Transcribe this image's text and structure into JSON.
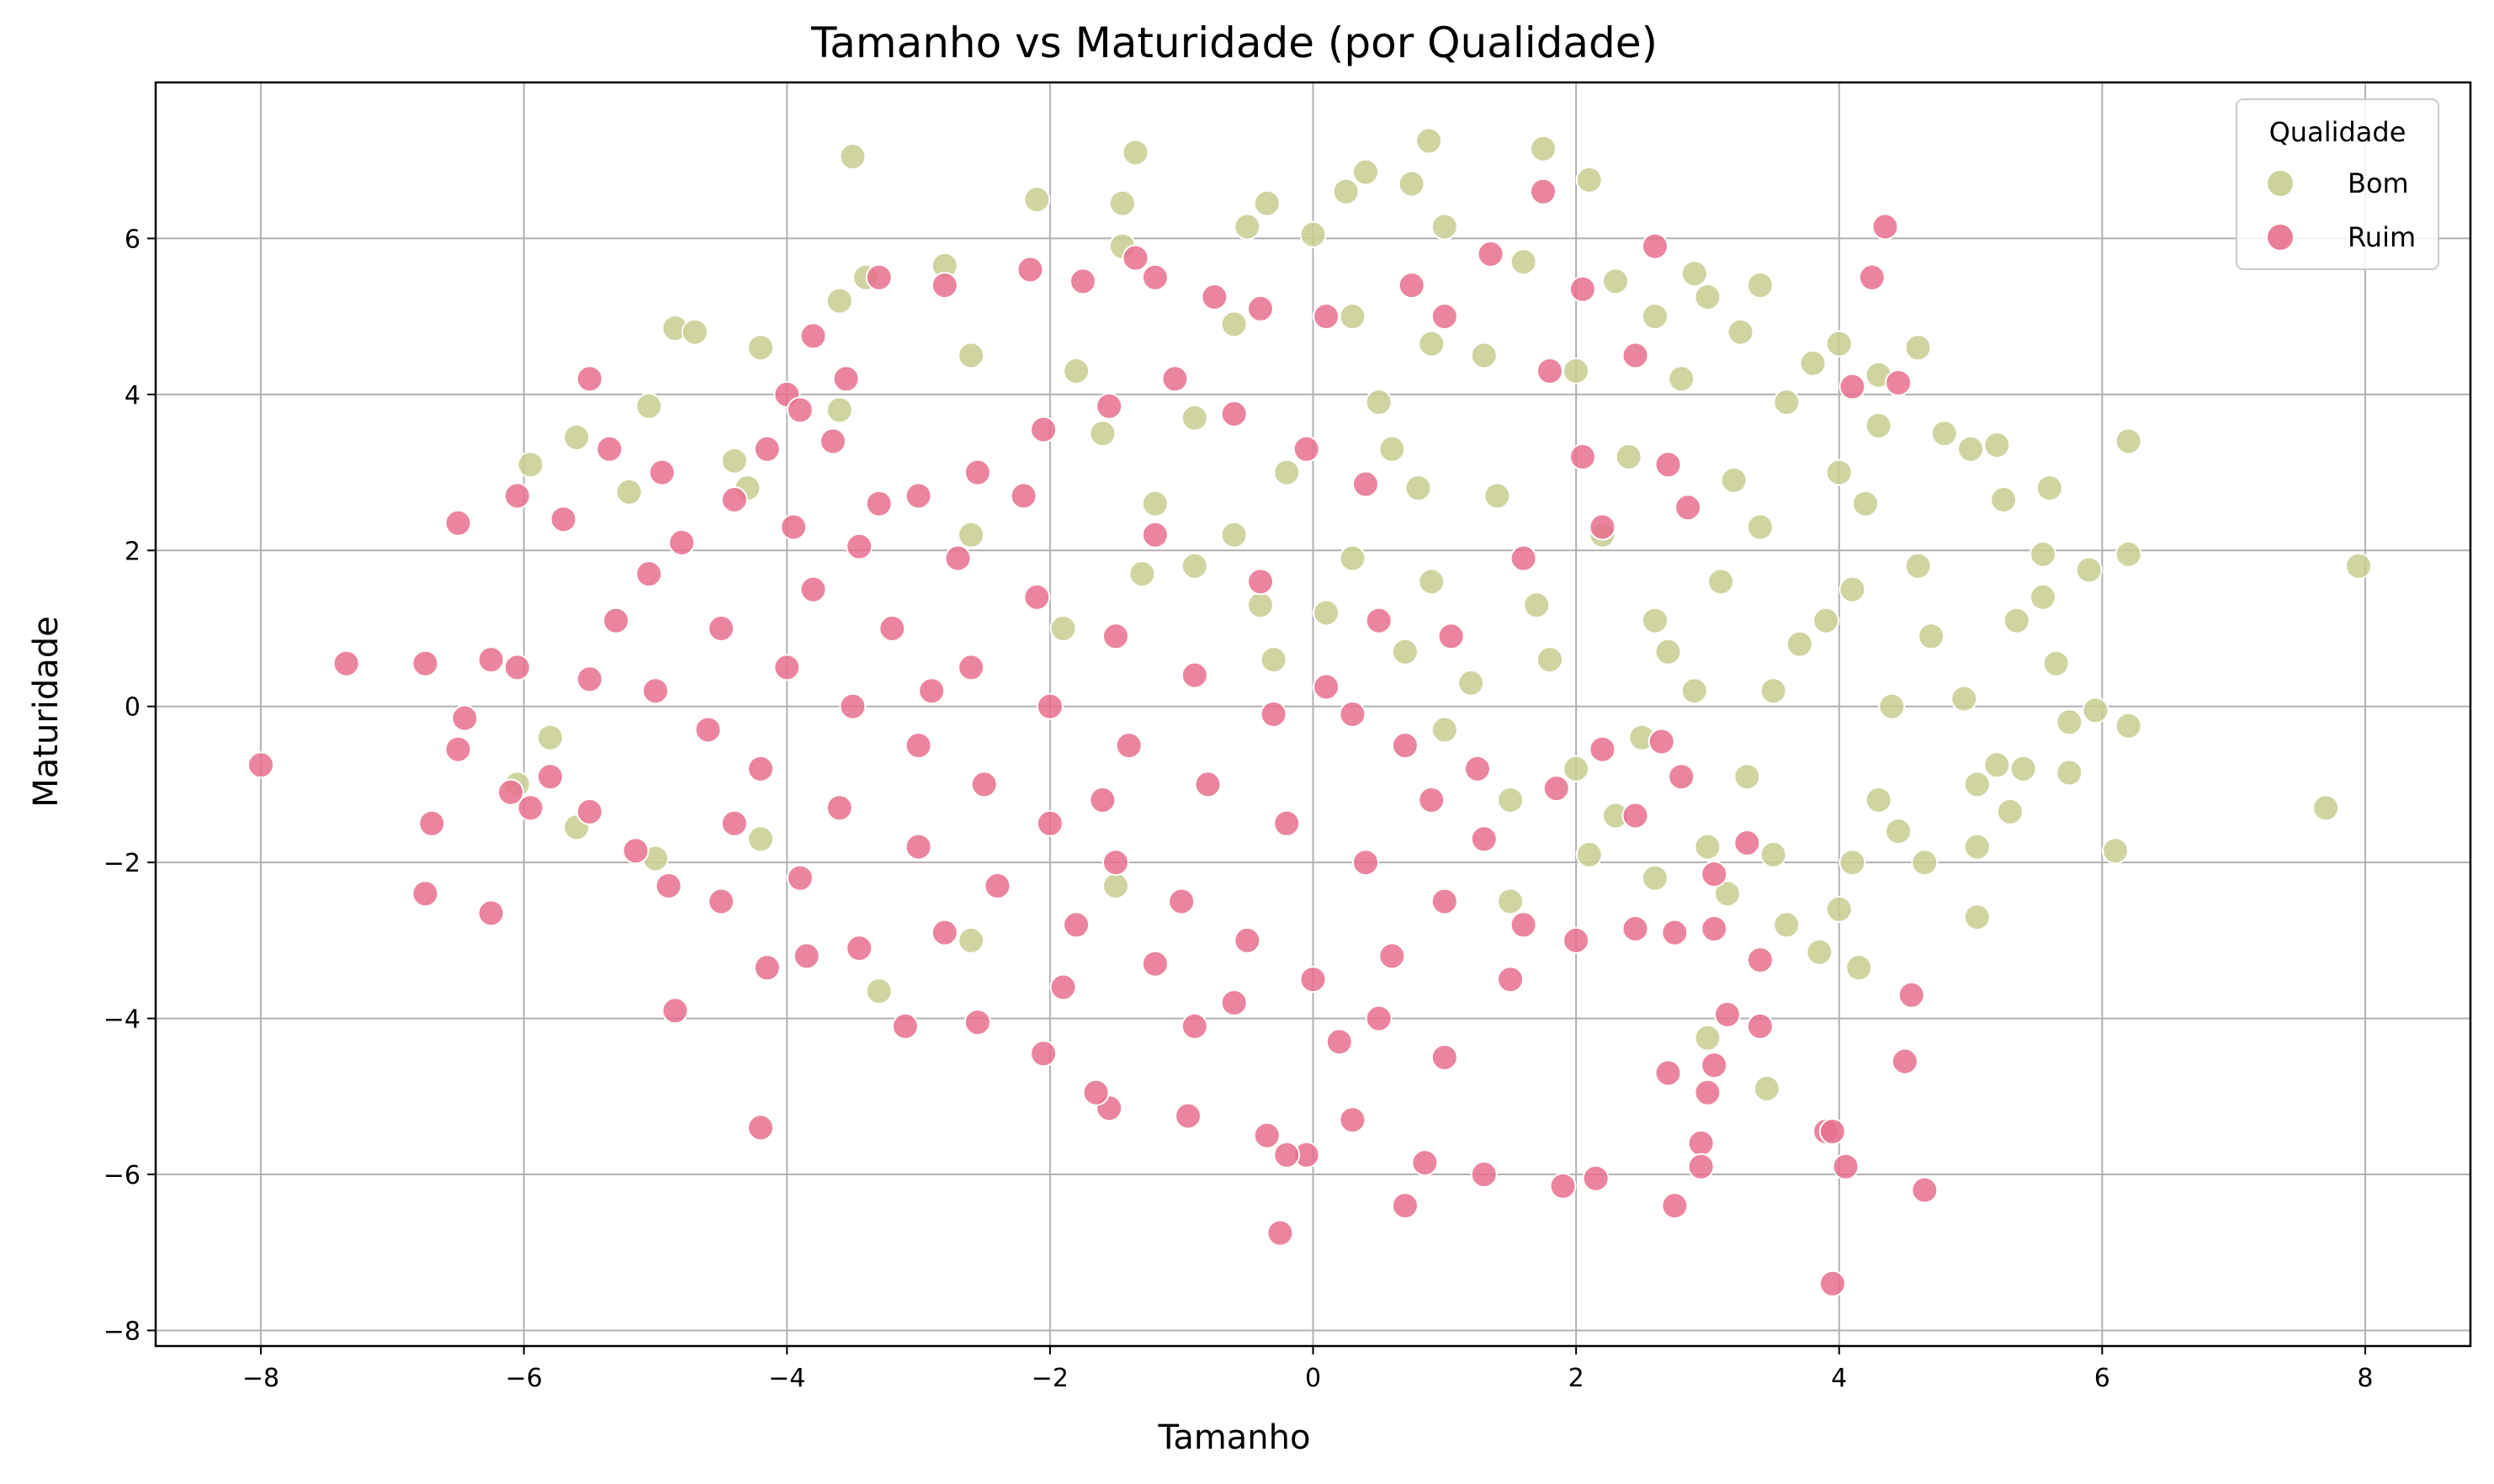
{
  "chart_data": {
    "type": "scatter",
    "title": "Tamanho vs Maturidade (por Qualidade)",
    "xlabel": "Tamanho",
    "ylabel": "Maturidade",
    "xlim": [
      -8.8,
      8.8
    ],
    "ylim": [
      -8.2,
      8.0
    ],
    "xticks": [
      -8,
      -6,
      -4,
      -2,
      0,
      2,
      4,
      6,
      8
    ],
    "yticks": [
      -8,
      -6,
      -4,
      -2,
      0,
      2,
      4,
      6
    ],
    "grid": true,
    "legend": {
      "title": "Qualidade",
      "placement": "top-right"
    },
    "series": [
      {
        "name": "Bom",
        "color": "#c8cc8f",
        "points": [
          [
            -3.5,
            7.05
          ],
          [
            -1.35,
            7.1
          ],
          [
            0.88,
            7.25
          ],
          [
            1.75,
            7.15
          ],
          [
            2.1,
            6.75
          ],
          [
            0.4,
            6.85
          ],
          [
            -1.45,
            6.45
          ],
          [
            -2.1,
            6.5
          ],
          [
            -0.35,
            6.45
          ],
          [
            0.25,
            6.6
          ],
          [
            0.75,
            6.7
          ],
          [
            1.0,
            6.15
          ],
          [
            -0.5,
            6.15
          ],
          [
            0.0,
            6.05
          ],
          [
            -1.45,
            5.9
          ],
          [
            -3.4,
            5.5
          ],
          [
            -2.8,
            5.65
          ],
          [
            -3.6,
            5.2
          ],
          [
            -4.2,
            4.6
          ],
          [
            -4.85,
            4.85
          ],
          [
            -4.7,
            4.8
          ],
          [
            -5.05,
            3.85
          ],
          [
            -5.95,
            3.1
          ],
          [
            -5.6,
            3.45
          ],
          [
            -5.2,
            2.75
          ],
          [
            -4.4,
            3.15
          ],
          [
            -4.3,
            2.8
          ],
          [
            -3.6,
            3.8
          ],
          [
            -2.6,
            4.5
          ],
          [
            -1.8,
            4.3
          ],
          [
            -0.6,
            4.9
          ],
          [
            0.3,
            5.0
          ],
          [
            0.9,
            4.65
          ],
          [
            1.6,
            5.7
          ],
          [
            2.3,
            5.45
          ],
          [
            2.6,
            5.0
          ],
          [
            2.9,
            5.55
          ],
          [
            3.0,
            5.25
          ],
          [
            3.4,
            5.4
          ],
          [
            3.25,
            4.8
          ],
          [
            3.8,
            4.4
          ],
          [
            4.0,
            4.65
          ],
          [
            4.3,
            4.25
          ],
          [
            4.6,
            4.6
          ],
          [
            4.3,
            3.6
          ],
          [
            4.8,
            3.5
          ],
          [
            5.0,
            3.3
          ],
          [
            5.2,
            3.35
          ],
          [
            6.2,
            3.4
          ],
          [
            6.2,
            1.95
          ],
          [
            5.6,
            2.8
          ],
          [
            5.9,
            1.75
          ],
          [
            5.55,
            1.95
          ],
          [
            5.55,
            1.4
          ],
          [
            5.35,
            1.1
          ],
          [
            5.25,
            2.65
          ],
          [
            7.95,
            1.8
          ],
          [
            5.65,
            0.55
          ],
          [
            4.95,
            0.1
          ],
          [
            5.2,
            -0.75
          ],
          [
            5.4,
            -0.8
          ],
          [
            5.75,
            -0.85
          ],
          [
            6.2,
            -0.25
          ],
          [
            5.75,
            -0.2
          ],
          [
            5.95,
            -0.05
          ],
          [
            5.05,
            -1.0
          ],
          [
            5.3,
            -1.35
          ],
          [
            5.05,
            -1.8
          ],
          [
            6.1,
            -1.85
          ],
          [
            7.7,
            -1.3
          ],
          [
            5.05,
            -2.7
          ],
          [
            4.65,
            -2.0
          ],
          [
            4.45,
            -1.6
          ],
          [
            4.15,
            -3.35
          ],
          [
            3.85,
            -3.15
          ],
          [
            3.45,
            -4.9
          ],
          [
            3.0,
            -4.25
          ],
          [
            3.15,
            -2.4
          ],
          [
            4.0,
            -2.6
          ],
          [
            4.1,
            -2.0
          ],
          [
            -6.05,
            -1.0
          ],
          [
            -5.8,
            -0.4
          ],
          [
            -5.6,
            -1.55
          ],
          [
            -5.0,
            -1.95
          ],
          [
            -4.2,
            -1.7
          ],
          [
            -3.3,
            -3.65
          ],
          [
            -2.6,
            -3.0
          ],
          [
            -1.5,
            -2.3
          ],
          [
            1.5,
            -2.5
          ],
          [
            2.1,
            -1.9
          ],
          [
            2.6,
            -2.2
          ],
          [
            3.0,
            -1.8
          ],
          [
            3.5,
            -1.9
          ],
          [
            3.6,
            -2.8
          ],
          [
            4.3,
            -1.2
          ],
          [
            4.7,
            0.9
          ],
          [
            4.6,
            1.8
          ],
          [
            4.2,
            2.6
          ],
          [
            4.0,
            3.0
          ],
          [
            3.6,
            3.9
          ],
          [
            2.8,
            4.2
          ],
          [
            2.0,
            4.3
          ],
          [
            1.3,
            4.5
          ],
          [
            0.5,
            3.9
          ],
          [
            -0.9,
            3.7
          ],
          [
            -1.6,
            3.5
          ],
          [
            -2.6,
            2.2
          ],
          [
            -1.9,
            1.0
          ],
          [
            -0.9,
            1.8
          ],
          [
            -0.3,
            0.6
          ],
          [
            0.3,
            1.9
          ],
          [
            0.8,
            2.8
          ],
          [
            1.2,
            0.3
          ],
          [
            1.7,
            1.3
          ],
          [
            2.2,
            2.2
          ],
          [
            2.7,
            0.7
          ],
          [
            3.1,
            1.6
          ],
          [
            3.5,
            0.2
          ],
          [
            3.9,
            1.1
          ],
          [
            4.4,
            0.0
          ],
          [
            2.0,
            -0.8
          ],
          [
            2.5,
            -0.4
          ],
          [
            3.3,
            -0.9
          ],
          [
            1.0,
            -0.3
          ],
          [
            1.4,
            2.7
          ],
          [
            2.4,
            3.2
          ],
          [
            3.2,
            2.9
          ],
          [
            0.6,
            3.3
          ],
          [
            -0.2,
            3.0
          ],
          [
            -1.2,
            2.6
          ],
          [
            -0.6,
            2.2
          ],
          [
            0.1,
            1.2
          ],
          [
            0.9,
            1.6
          ],
          [
            1.8,
            0.6
          ],
          [
            2.9,
            0.2
          ],
          [
            3.7,
            0.8
          ],
          [
            4.1,
            1.5
          ],
          [
            3.4,
            2.3
          ],
          [
            2.6,
            1.1
          ],
          [
            1.5,
            -1.2
          ],
          [
            2.3,
            -1.4
          ],
          [
            0.7,
            0.7
          ],
          [
            -0.4,
            1.3
          ],
          [
            -1.3,
            1.7
          ]
        ]
      },
      {
        "name": "Ruim",
        "color": "#e8708e",
        "points": [
          [
            -8.0,
            -0.75
          ],
          [
            -7.35,
            0.55
          ],
          [
            -6.75,
            0.55
          ],
          [
            -6.7,
            -1.5
          ],
          [
            -6.75,
            -2.4
          ],
          [
            -6.25,
            -2.65
          ],
          [
            -6.5,
            -0.55
          ],
          [
            -6.45,
            -0.15
          ],
          [
            -6.5,
            2.35
          ],
          [
            -6.05,
            2.7
          ],
          [
            -5.7,
            2.4
          ],
          [
            -6.25,
            0.6
          ],
          [
            -6.05,
            0.5
          ],
          [
            -6.1,
            -1.1
          ],
          [
            -5.95,
            -1.3
          ],
          [
            -4.85,
            -3.9
          ],
          [
            -4.2,
            -5.4
          ],
          [
            -3.55,
            4.2
          ],
          [
            -4.0,
            4.0
          ],
          [
            -5.5,
            4.2
          ],
          [
            -5.35,
            3.3
          ],
          [
            -4.95,
            3.0
          ],
          [
            -4.15,
            3.3
          ],
          [
            -3.9,
            3.8
          ],
          [
            -3.65,
            3.4
          ],
          [
            -3.3,
            5.5
          ],
          [
            -3.8,
            4.75
          ],
          [
            -2.8,
            5.4
          ],
          [
            -2.15,
            5.6
          ],
          [
            -1.75,
            5.45
          ],
          [
            -1.35,
            5.75
          ],
          [
            -1.2,
            5.5
          ],
          [
            -0.75,
            5.25
          ],
          [
            -0.4,
            5.1
          ],
          [
            0.1,
            5.0
          ],
          [
            0.75,
            5.4
          ],
          [
            1.0,
            5.0
          ],
          [
            1.35,
            5.8
          ],
          [
            1.75,
            6.6
          ],
          [
            2.6,
            5.9
          ],
          [
            4.35,
            6.15
          ],
          [
            4.25,
            5.5
          ],
          [
            2.05,
            5.35
          ],
          [
            4.1,
            4.1
          ],
          [
            4.45,
            4.15
          ],
          [
            2.45,
            4.5
          ],
          [
            1.8,
            4.3
          ],
          [
            2.05,
            3.2
          ],
          [
            2.7,
            3.1
          ],
          [
            2.85,
            2.55
          ],
          [
            2.2,
            2.3
          ],
          [
            1.6,
            1.9
          ],
          [
            1.05,
            0.9
          ],
          [
            0.5,
            1.1
          ],
          [
            0.1,
            0.25
          ],
          [
            0.3,
            -0.1
          ],
          [
            0.7,
            -0.5
          ],
          [
            1.25,
            -0.8
          ],
          [
            1.85,
            -1.05
          ],
          [
            2.2,
            -0.55
          ],
          [
            2.65,
            -0.45
          ],
          [
            2.45,
            -1.4
          ],
          [
            2.8,
            -0.9
          ],
          [
            3.3,
            -1.75
          ],
          [
            3.05,
            -2.15
          ],
          [
            2.45,
            -2.85
          ],
          [
            2.75,
            -2.9
          ],
          [
            3.05,
            -2.85
          ],
          [
            3.4,
            -3.25
          ],
          [
            3.15,
            -3.95
          ],
          [
            3.4,
            -4.1
          ],
          [
            3.05,
            -4.6
          ],
          [
            3.0,
            -4.95
          ],
          [
            2.7,
            -4.7
          ],
          [
            2.95,
            -5.6
          ],
          [
            2.95,
            -5.9
          ],
          [
            2.75,
            -6.4
          ],
          [
            3.9,
            -5.45
          ],
          [
            3.95,
            -5.45
          ],
          [
            4.05,
            -5.9
          ],
          [
            3.95,
            -7.4
          ],
          [
            4.5,
            -4.55
          ],
          [
            4.55,
            -3.7
          ],
          [
            4.65,
            -6.2
          ],
          [
            2.15,
            -6.05
          ],
          [
            1.9,
            -6.15
          ],
          [
            1.3,
            -6.0
          ],
          [
            0.85,
            -5.85
          ],
          [
            0.7,
            -6.4
          ],
          [
            -0.25,
            -6.75
          ],
          [
            -0.05,
            -5.75
          ],
          [
            -0.2,
            -5.75
          ],
          [
            0.3,
            -5.3
          ],
          [
            -0.35,
            -5.5
          ],
          [
            -0.95,
            -5.25
          ],
          [
            -1.55,
            -5.15
          ],
          [
            -1.65,
            -4.95
          ],
          [
            -2.05,
            -4.45
          ],
          [
            -2.55,
            -4.05
          ],
          [
            -3.1,
            -4.1
          ],
          [
            -3.45,
            -3.1
          ],
          [
            -3.85,
            -3.2
          ],
          [
            -4.15,
            -3.35
          ],
          [
            -4.5,
            -2.5
          ],
          [
            -4.9,
            -2.3
          ],
          [
            -5.15,
            -1.85
          ],
          [
            -5.5,
            -1.35
          ],
          [
            -5.8,
            -0.9
          ],
          [
            -5.5,
            0.35
          ],
          [
            -5.3,
            1.1
          ],
          [
            -5.05,
            1.7
          ],
          [
            -4.8,
            2.1
          ],
          [
            -4.4,
            2.65
          ],
          [
            -3.95,
            2.3
          ],
          [
            -3.45,
            2.05
          ],
          [
            -3.0,
            2.7
          ],
          [
            -2.55,
            3.0
          ],
          [
            -2.05,
            3.55
          ],
          [
            -1.55,
            3.85
          ],
          [
            -1.05,
            4.2
          ],
          [
            -0.6,
            3.75
          ],
          [
            -0.05,
            3.3
          ],
          [
            0.4,
            2.85
          ],
          [
            -4.5,
            1.0
          ],
          [
            -4.0,
            0.5
          ],
          [
            -3.5,
            0.0
          ],
          [
            -3.0,
            -0.5
          ],
          [
            -2.5,
            -1.0
          ],
          [
            -2.0,
            -1.5
          ],
          [
            -1.5,
            -2.0
          ],
          [
            -1.0,
            -2.5
          ],
          [
            -0.5,
            -3.0
          ],
          [
            0.0,
            -3.5
          ],
          [
            0.5,
            -4.0
          ],
          [
            1.0,
            -4.5
          ],
          [
            1.5,
            -3.5
          ],
          [
            2.0,
            -3.0
          ],
          [
            -3.8,
            1.5
          ],
          [
            -3.2,
            1.0
          ],
          [
            -2.6,
            0.5
          ],
          [
            -2.0,
            0.0
          ],
          [
            -1.4,
            -0.5
          ],
          [
            -0.8,
            -1.0
          ],
          [
            -0.2,
            -1.5
          ],
          [
            0.4,
            -2.0
          ],
          [
            1.0,
            -2.5
          ],
          [
            1.6,
            -2.8
          ],
          [
            -4.2,
            -0.8
          ],
          [
            -3.6,
            -1.3
          ],
          [
            -3.0,
            -1.8
          ],
          [
            -2.4,
            -2.3
          ],
          [
            -1.8,
            -2.8
          ],
          [
            -1.2,
            -3.3
          ],
          [
            -0.6,
            -3.8
          ],
          [
            0.2,
            -4.3
          ],
          [
            -5.0,
            0.2
          ],
          [
            -4.6,
            -0.3
          ],
          [
            -3.3,
            2.6
          ],
          [
            -2.7,
            1.9
          ],
          [
            -2.1,
            1.4
          ],
          [
            -1.5,
            0.9
          ],
          [
            -0.9,
            0.4
          ],
          [
            -0.3,
            -0.1
          ],
          [
            -2.8,
            -2.9
          ],
          [
            -1.9,
            -3.6
          ],
          [
            -0.9,
            -4.1
          ],
          [
            0.6,
            -3.2
          ],
          [
            1.3,
            -1.7
          ],
          [
            -3.9,
            -2.2
          ],
          [
            -4.4,
            -1.5
          ],
          [
            -2.2,
            2.7
          ],
          [
            -1.2,
            2.2
          ],
          [
            -0.4,
            1.6
          ],
          [
            0.9,
            -1.2
          ],
          [
            -1.6,
            -1.2
          ],
          [
            -2.9,
            0.2
          ]
        ]
      }
    ]
  }
}
